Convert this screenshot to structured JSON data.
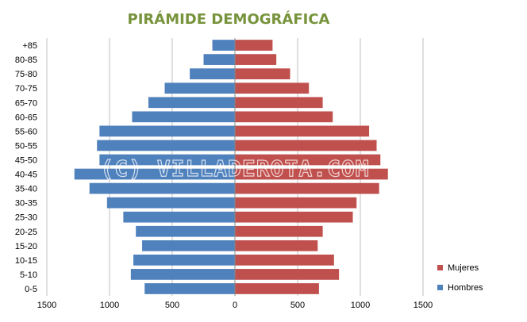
{
  "chart_data": {
    "type": "bar",
    "title": "PIRÁMIDE DEMOGRÁFICA",
    "watermark": "(C) VILLADEROTA.COM",
    "categories": [
      "+85",
      "80-85",
      "75-80",
      "70-75",
      "65-70",
      "60-65",
      "55-60",
      "50-55",
      "45-50",
      "40-45",
      "35-40",
      "30-35",
      "25-30",
      "20-25",
      "15-20",
      "10-15",
      "5-10",
      "0-5"
    ],
    "series": [
      {
        "name": "Hombres",
        "color": "#4f81bd",
        "values": [
          180,
          250,
          360,
          560,
          690,
          820,
          1080,
          1100,
          1080,
          1280,
          1160,
          1020,
          890,
          790,
          740,
          810,
          830,
          720
        ]
      },
      {
        "name": "Mujeres",
        "color": "#c0504d",
        "values": [
          300,
          330,
          440,
          590,
          700,
          780,
          1070,
          1130,
          1160,
          1220,
          1150,
          970,
          940,
          700,
          660,
          790,
          830,
          670
        ]
      }
    ],
    "x_ticks": [
      "1500",
      "1000",
      "500",
      "0",
      "500",
      "1000",
      "1500"
    ],
    "xlim": [
      -1500,
      1500
    ],
    "grid": true,
    "legend_position": "right",
    "legend": [
      "Mujeres",
      "Hombres"
    ]
  }
}
